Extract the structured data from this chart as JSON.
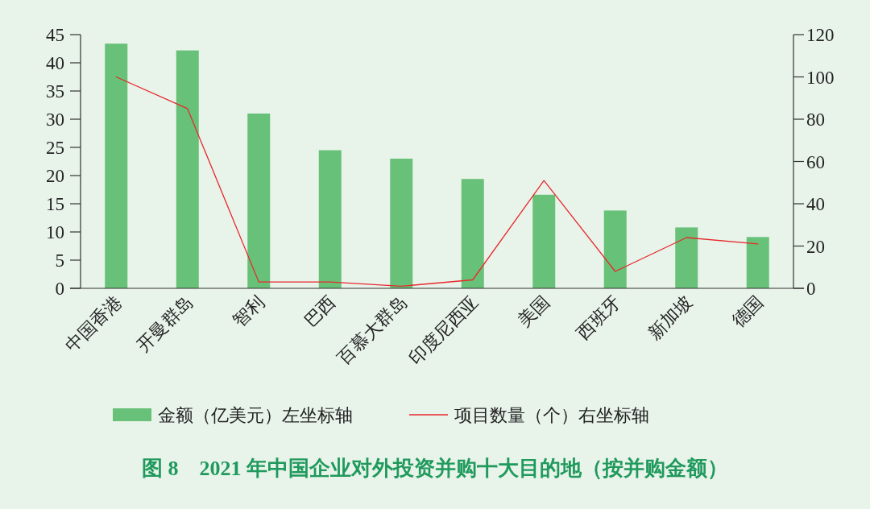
{
  "chart_data": {
    "type": "bar",
    "title": "图 8　2021 年中国企业对外投资并购十大目的地（按并购金额）",
    "categories": [
      "中国香港",
      "开曼群岛",
      "智利",
      "巴西",
      "百慕大群岛",
      "印度尼西亚",
      "美国",
      "西班牙",
      "新加坡",
      "德国"
    ],
    "series": [
      {
        "name": "金额（亿美元）左坐标轴",
        "color": "#68c178",
        "values": [
          43.4,
          42.2,
          31.0,
          24.5,
          23.0,
          19.4,
          16.6,
          13.8,
          10.8,
          9.1
        ]
      },
      {
        "name": "项目数量（个）右坐标轴",
        "type": "line",
        "axis": "y2",
        "color": "#e8282d",
        "values": [
          100,
          85,
          3,
          3,
          1,
          4,
          51,
          8,
          24,
          21
        ]
      }
    ],
    "ylim": [
      0,
      45
    ],
    "yticks": [
      0,
      5,
      10,
      15,
      20,
      25,
      30,
      35,
      40,
      45
    ],
    "y2lim": [
      0,
      120
    ],
    "y2ticks": [
      0,
      20,
      40,
      60,
      80,
      100,
      120
    ],
    "legend": "bottom",
    "grid": false
  }
}
